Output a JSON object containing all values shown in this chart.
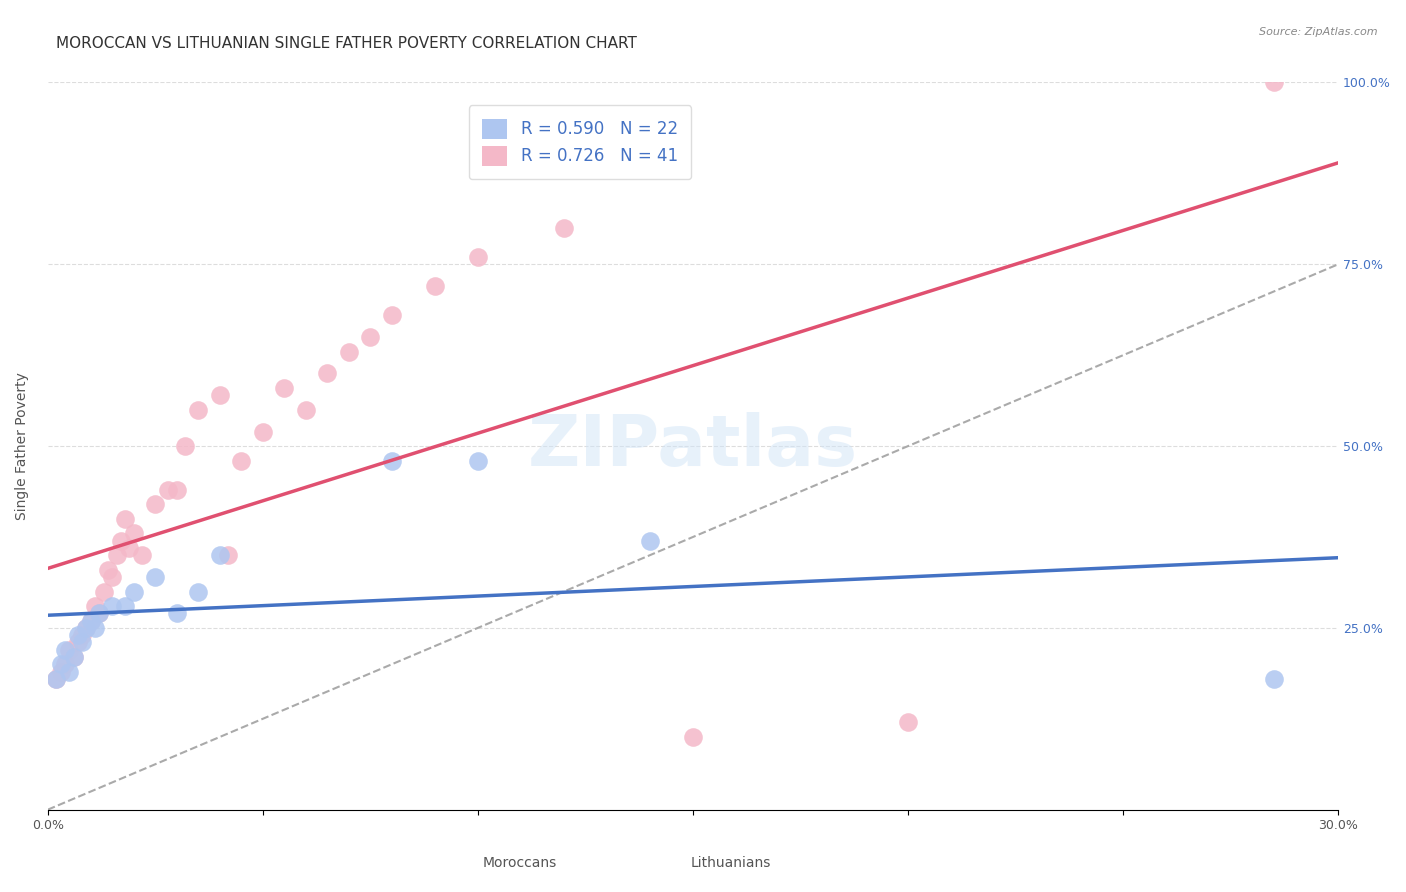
{
  "title": "MOROCCAN VS LITHUANIAN SINGLE FATHER POVERTY CORRELATION CHART",
  "source": "Source: ZipAtlas.com",
  "xlabel": "",
  "ylabel": "Single Father Poverty",
  "xlim": [
    0,
    0.3
  ],
  "ylim": [
    0,
    1.0
  ],
  "xticks": [
    0.0,
    0.05,
    0.1,
    0.15,
    0.2,
    0.25,
    0.3
  ],
  "xtick_labels": [
    "0.0%",
    "",
    "",
    "",
    "",
    "",
    "30.0%"
  ],
  "yticks": [
    0.0,
    0.25,
    0.5,
    0.75,
    1.0
  ],
  "ytick_labels": [
    "",
    "25.0%",
    "50.0%",
    "75.0%",
    "100.0%"
  ],
  "moroccan_R": 0.59,
  "moroccan_N": 22,
  "lithuanian_R": 0.726,
  "lithuanian_N": 41,
  "moroccan_color": "#aec6f0",
  "lithuanian_color": "#f4b8c8",
  "moroccan_line_color": "#4472c4",
  "lithuanian_line_color": "#e05070",
  "watermark": "ZIPatlas",
  "moroccan_x": [
    0.002,
    0.003,
    0.004,
    0.005,
    0.006,
    0.007,
    0.008,
    0.009,
    0.01,
    0.011,
    0.012,
    0.015,
    0.018,
    0.02,
    0.025,
    0.03,
    0.035,
    0.04,
    0.08,
    0.1,
    0.14,
    0.285
  ],
  "moroccan_y": [
    0.18,
    0.2,
    0.22,
    0.19,
    0.21,
    0.24,
    0.23,
    0.25,
    0.26,
    0.25,
    0.27,
    0.28,
    0.28,
    0.3,
    0.32,
    0.27,
    0.3,
    0.35,
    0.48,
    0.48,
    0.37,
    0.18
  ],
  "lithuanian_x": [
    0.002,
    0.003,
    0.004,
    0.005,
    0.006,
    0.007,
    0.008,
    0.009,
    0.01,
    0.011,
    0.012,
    0.013,
    0.014,
    0.015,
    0.016,
    0.017,
    0.018,
    0.019,
    0.02,
    0.022,
    0.025,
    0.028,
    0.03,
    0.032,
    0.035,
    0.04,
    0.042,
    0.045,
    0.05,
    0.055,
    0.06,
    0.065,
    0.07,
    0.075,
    0.08,
    0.09,
    0.1,
    0.12,
    0.15,
    0.2,
    0.285
  ],
  "lithuanian_y": [
    0.18,
    0.19,
    0.2,
    0.22,
    0.21,
    0.23,
    0.24,
    0.25,
    0.26,
    0.28,
    0.27,
    0.3,
    0.33,
    0.32,
    0.35,
    0.37,
    0.4,
    0.36,
    0.38,
    0.35,
    0.42,
    0.44,
    0.44,
    0.5,
    0.55,
    0.57,
    0.35,
    0.48,
    0.52,
    0.58,
    0.55,
    0.6,
    0.63,
    0.65,
    0.68,
    0.72,
    0.76,
    0.8,
    0.1,
    0.12,
    1.0
  ],
  "background_color": "#ffffff",
  "grid_color": "#dddddd",
  "title_fontsize": 11,
  "axis_label_fontsize": 10,
  "tick_fontsize": 9
}
